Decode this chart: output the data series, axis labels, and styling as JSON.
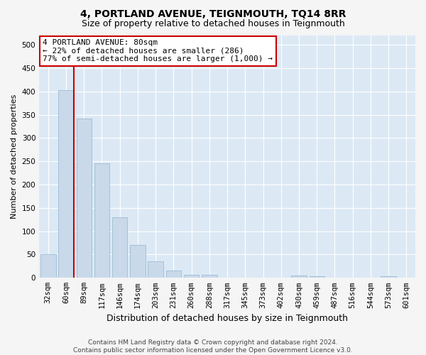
{
  "title": "4, PORTLAND AVENUE, TEIGNMOUTH, TQ14 8RR",
  "subtitle": "Size of property relative to detached houses in Teignmouth",
  "xlabel": "Distribution of detached houses by size in Teignmouth",
  "ylabel": "Number of detached properties",
  "categories": [
    "32sqm",
    "60sqm",
    "89sqm",
    "117sqm",
    "146sqm",
    "174sqm",
    "203sqm",
    "231sqm",
    "260sqm",
    "288sqm",
    "317sqm",
    "345sqm",
    "373sqm",
    "402sqm",
    "430sqm",
    "459sqm",
    "487sqm",
    "516sqm",
    "544sqm",
    "573sqm",
    "601sqm"
  ],
  "values": [
    50,
    403,
    342,
    246,
    130,
    70,
    36,
    15,
    6,
    6,
    0,
    0,
    0,
    0,
    5,
    4,
    0,
    0,
    0,
    4,
    0
  ],
  "bar_color": "#c9d9ea",
  "bar_edge_color": "#90b4cf",
  "marker_bar_index": 1,
  "marker_line_color": "#cc0000",
  "annotation_text": "4 PORTLAND AVENUE: 80sqm\n← 22% of detached houses are smaller (286)\n77% of semi-detached houses are larger (1,000) →",
  "annotation_box_facecolor": "#ffffff",
  "annotation_box_edgecolor": "#cc0000",
  "footer_line1": "Contains HM Land Registry data © Crown copyright and database right 2024.",
  "footer_line2": "Contains public sector information licensed under the Open Government Licence v3.0.",
  "ylim": [
    0,
    520
  ],
  "yticks": [
    0,
    50,
    100,
    150,
    200,
    250,
    300,
    350,
    400,
    450,
    500
  ],
  "figure_facecolor": "#f5f5f5",
  "plot_facecolor": "#dce9f5",
  "grid_color": "#ffffff",
  "title_fontsize": 10,
  "subtitle_fontsize": 9,
  "ylabel_fontsize": 8,
  "xlabel_fontsize": 9,
  "tick_fontsize": 7.5,
  "annotation_fontsize": 8,
  "footer_fontsize": 6.5
}
